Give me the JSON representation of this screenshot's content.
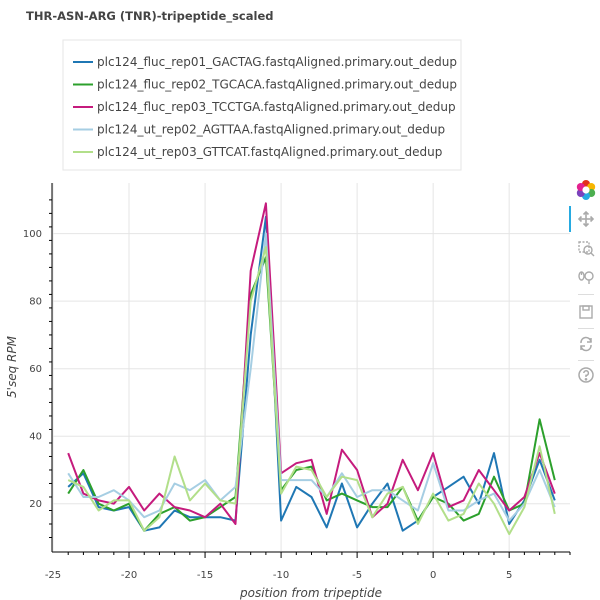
{
  "chart_data": {
    "type": "line",
    "title": "THR-ASN-ARG (TNR)-tripeptide_scaled",
    "xlabel": "position from tripeptide",
    "ylabel": "5'seq RPM",
    "xlim": [
      -25,
      9
    ],
    "ylim": [
      6,
      115
    ],
    "x_ticks": [
      -25,
      -20,
      -15,
      -10,
      -5,
      0,
      5
    ],
    "y_ticks": [
      20,
      40,
      60,
      80,
      100
    ],
    "grid": true,
    "legend_position": "top-left",
    "x": [
      -24,
      -23,
      -22,
      -21,
      -20,
      -19,
      -18,
      -17,
      -16,
      -15,
      -14,
      -13,
      -12,
      -11,
      -10,
      -9,
      -8,
      -7,
      -6,
      -5,
      -4,
      -3,
      -2,
      -1,
      0,
      1,
      2,
      3,
      4,
      5,
      6,
      7,
      8
    ],
    "series": [
      {
        "name": "plc124_fluc_rep01_GACTAG.fastqAligned.primary.out_dedup",
        "color": "#1f77b4",
        "values": [
          25,
          29,
          19,
          18,
          19,
          12,
          13,
          18,
          16,
          16,
          16,
          15,
          70,
          105,
          15,
          25,
          22,
          13,
          26,
          13,
          20,
          26,
          12,
          15,
          22,
          25,
          28,
          20,
          35,
          14,
          21,
          33,
          21
        ]
      },
      {
        "name": "plc124_fluc_rep02_TGCACA.fastqAligned.primary.out_dedup",
        "color": "#2ca02c",
        "values": [
          23,
          30,
          20,
          18,
          20,
          12,
          17,
          19,
          15,
          16,
          19,
          22,
          82,
          93,
          24,
          30,
          31,
          21,
          23,
          21,
          19,
          19,
          25,
          15,
          22,
          20,
          15,
          17,
          28,
          18,
          20,
          45,
          27
        ]
      },
      {
        "name": "plc124_fluc_rep03_TCCTGA.fastqAligned.primary.out_dedup",
        "color": "#c51b7d",
        "values": [
          35,
          23,
          21,
          20,
          25,
          18,
          23,
          19,
          18,
          16,
          20,
          14,
          89,
          109,
          29,
          32,
          33,
          17,
          36,
          30,
          16,
          20,
          33,
          24,
          35,
          19,
          21,
          30,
          24,
          18,
          22,
          35,
          23
        ]
      },
      {
        "name": "plc124_ut_rep02_AGTTAA.fastqAligned.primary.out_dedup",
        "color": "#a6cee3",
        "values": [
          29,
          22,
          22,
          24,
          21,
          16,
          18,
          26,
          24,
          27,
          21,
          25,
          60,
          100,
          27,
          27,
          27,
          22,
          29,
          22,
          24,
          24,
          21,
          18,
          32,
          18,
          18,
          21,
          23,
          15,
          20,
          30,
          19
        ]
      },
      {
        "name": "plc124_ut_rep03_GTTCAT.fastqAligned.primary.out_dedup",
        "color": "#b2df8a",
        "values": [
          27,
          25,
          18,
          21,
          21,
          12,
          16,
          34,
          21,
          26,
          21,
          20,
          80,
          96,
          23,
          31,
          30,
          22,
          28,
          27,
          16,
          23,
          25,
          14,
          23,
          15,
          17,
          26,
          20,
          11,
          19,
          37,
          17
        ]
      }
    ]
  },
  "toolbar": {
    "tools": [
      "bokeh-logo-icon",
      "pan-icon",
      "box-zoom-icon",
      "wheel-zoom-icon",
      "save-icon",
      "reset-icon",
      "help-icon"
    ]
  }
}
